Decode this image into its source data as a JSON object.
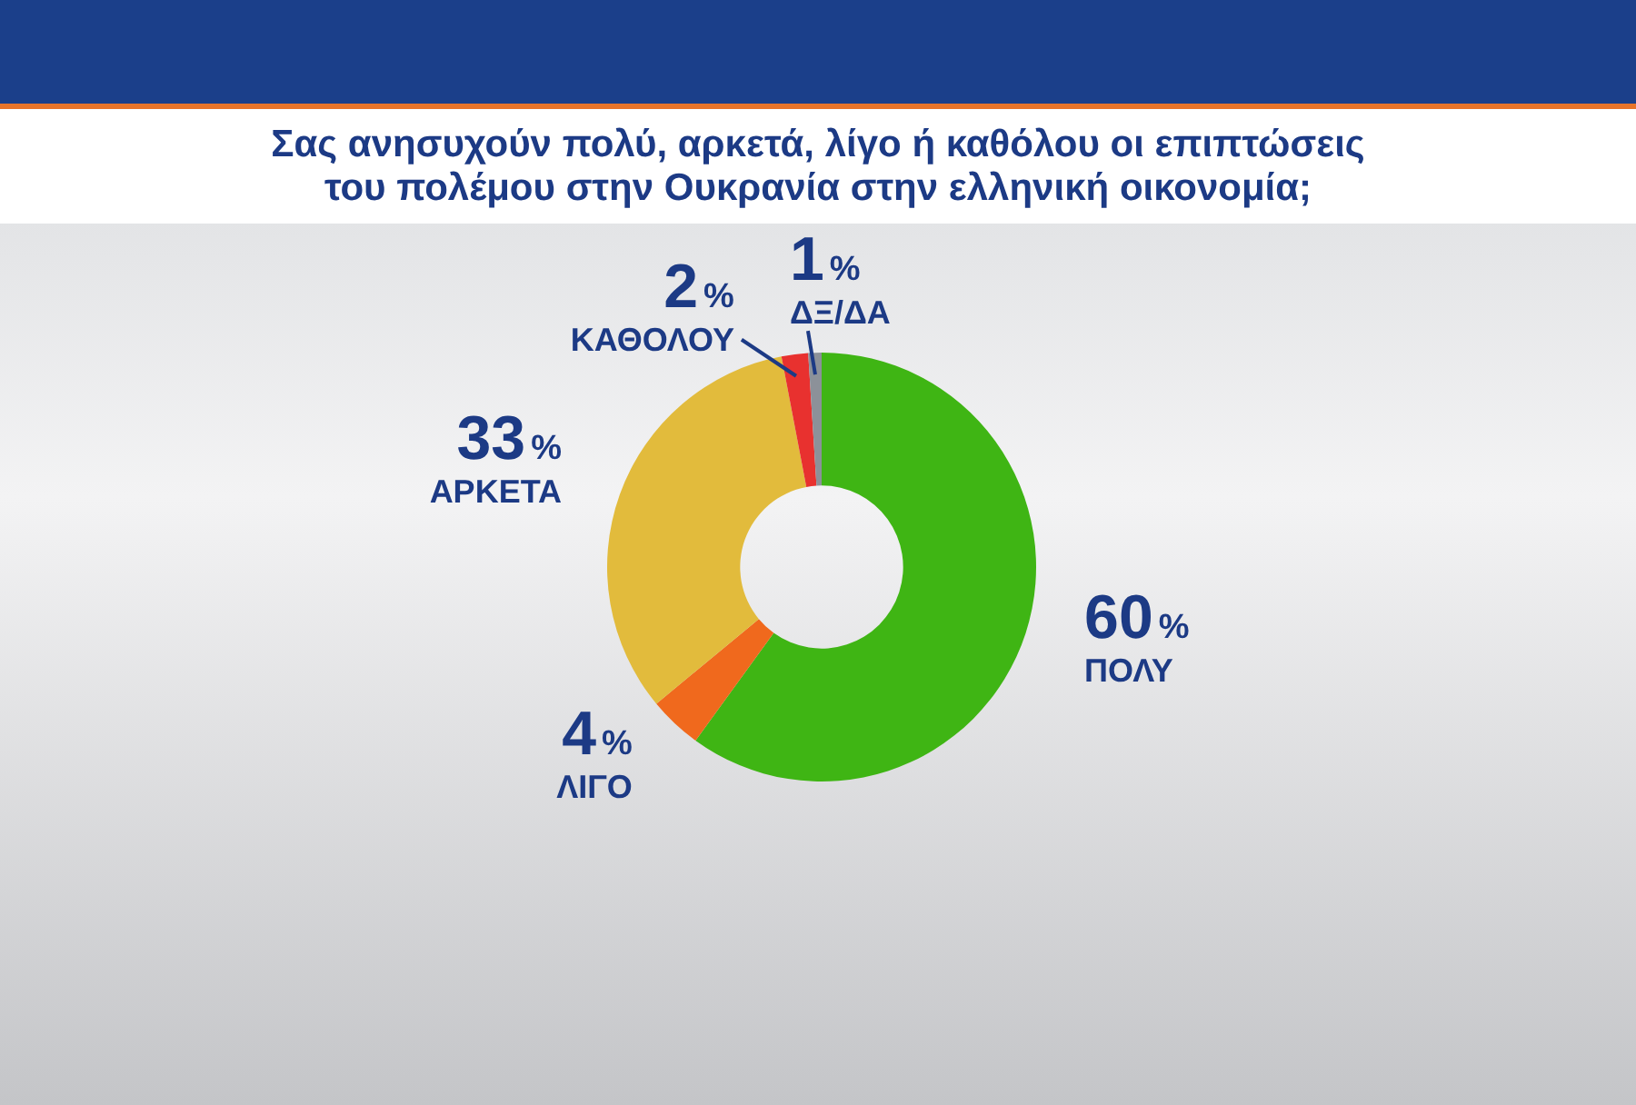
{
  "chart_data": {
    "type": "donut",
    "title": "Σας ανησυχούν πολύ, αρκετά, λίγο ή καθόλου οι επιπτώσεις του πολέμου στην Ουκρανία στην ελληνική οικονομία;",
    "categories": [
      "ΠΟΛΥ",
      "ΛΙΓΟ",
      "ΑΡΚΕΤΑ",
      "ΚΑΘΟΛΟΥ",
      "ΔΞ/ΔΑ"
    ],
    "values": [
      60,
      4,
      33,
      2,
      1
    ],
    "colors": [
      "#3fb514",
      "#f0691d",
      "#e2bb3c",
      "#e8312f",
      "#8c9199"
    ],
    "value_labels": [
      "60%",
      "4%",
      "33%",
      "2%",
      "1%"
    ]
  }
}
